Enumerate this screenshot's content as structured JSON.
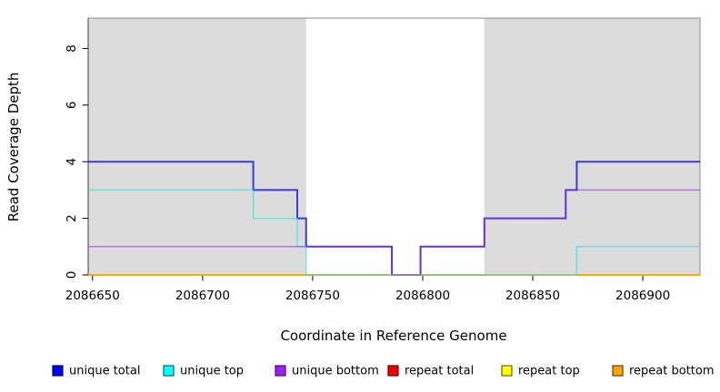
{
  "figure": {
    "xlabel": "Coordinate in Reference Genome",
    "ylabel": "Read Coverage Depth"
  },
  "chart_data": {
    "type": "line",
    "step": true,
    "title": "",
    "xlabel": "Coordinate in Reference Genome",
    "ylabel": "Read Coverage Depth",
    "xlim": [
      2086648,
      2086926
    ],
    "ylim": [
      0,
      9.07
    ],
    "x_ticks": [
      2086650,
      2086700,
      2086750,
      2086800,
      2086850,
      2086900
    ],
    "y_ticks": [
      0,
      2,
      4,
      6,
      8
    ],
    "grid": false,
    "legend_position": "bottom",
    "plot_background": "#ffffff",
    "shaded_bands": [
      {
        "x0": 2086648,
        "x1": 2086747,
        "color": "#dcdcdc"
      },
      {
        "x0": 2086828,
        "x1": 2086926,
        "color": "#dcdcdc"
      }
    ],
    "draw_order": [
      0,
      3,
      4,
      5,
      1,
      2
    ],
    "series": [
      {
        "name": "unique total",
        "line_color": "#3a3ad6",
        "width": 2,
        "opacity": 1,
        "swatch": "#0000ee",
        "swatch_border": "#000066",
        "points": [
          [
            2086648,
            4
          ],
          [
            2086723,
            3
          ],
          [
            2086743,
            2
          ],
          [
            2086747,
            1
          ],
          [
            2086786,
            0
          ],
          [
            2086799,
            1
          ],
          [
            2086828,
            2
          ],
          [
            2086865,
            3
          ],
          [
            2086870,
            4
          ],
          [
            2086926,
            4
          ]
        ]
      },
      {
        "name": "unique top",
        "line_color": "#2fe0e6",
        "width": 1.5,
        "opacity": 0.65,
        "swatch": "#00ffff",
        "swatch_border": "#006666",
        "points": [
          [
            2086648,
            3
          ],
          [
            2086723,
            2
          ],
          [
            2086743,
            1
          ],
          [
            2086747,
            0
          ],
          [
            2086870,
            1
          ],
          [
            2086926,
            1
          ]
        ]
      },
      {
        "name": "unique bottom",
        "line_color": "#a020f0",
        "width": 1.5,
        "opacity": 0.55,
        "swatch": "#a020f0",
        "swatch_border": "#4b0d75",
        "points": [
          [
            2086648,
            1
          ],
          [
            2086786,
            0
          ],
          [
            2086799,
            1
          ],
          [
            2086828,
            2
          ],
          [
            2086865,
            3
          ],
          [
            2086926,
            3
          ]
        ]
      },
      {
        "name": "repeat total",
        "line_color": "#dd0000",
        "width": 1.5,
        "opacity": 1,
        "swatch": "#ee0000",
        "swatch_border": "#660000",
        "points": [
          [
            2086648,
            0
          ],
          [
            2086926,
            0
          ]
        ]
      },
      {
        "name": "repeat top",
        "line_color": "#ffff00",
        "width": 1.5,
        "opacity": 1,
        "swatch": "#ffff00",
        "swatch_border": "#666600",
        "points": [
          [
            2086648,
            0
          ],
          [
            2086926,
            0
          ]
        ]
      },
      {
        "name": "repeat bottom",
        "line_color": "#ffa500",
        "width": 1.8,
        "opacity": 1,
        "swatch": "#ffa500",
        "swatch_border": "#663f00",
        "points": [
          [
            2086648,
            0
          ],
          [
            2086926,
            0
          ]
        ]
      }
    ]
  }
}
